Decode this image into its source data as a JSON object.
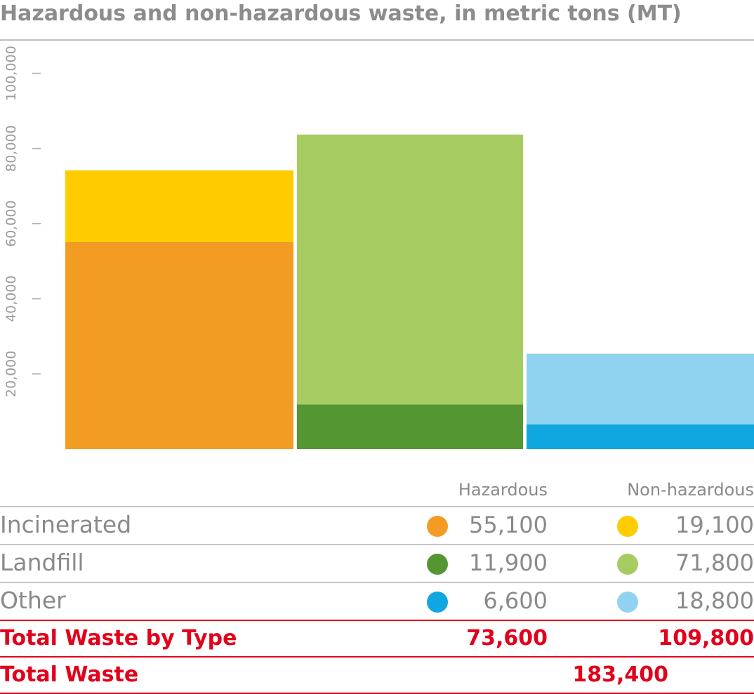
{
  "title": "Hazardous and non-hazardous waste, in metric tons (MT)",
  "chart_data": {
    "type": "bar",
    "stacked": true,
    "categories": [
      "Incinerated",
      "Landfill",
      "Other"
    ],
    "series": [
      {
        "name": "Hazardous",
        "values": [
          55100,
          11900,
          6600
        ],
        "colors": [
          "#f39c24",
          "#549632",
          "#10a7e0"
        ]
      },
      {
        "name": "Non-hazardous",
        "values": [
          19100,
          71800,
          18800
        ],
        "colors": [
          "#ffcc00",
          "#a6cc61",
          "#90d3f0"
        ]
      }
    ],
    "ylim": [
      0,
      100000
    ],
    "yticks": [
      20000,
      40000,
      60000,
      80000,
      100000
    ],
    "ytick_labels": [
      "20,000",
      "40,000",
      "60,000",
      "80,000",
      "100,000"
    ],
    "grid": false
  },
  "table": {
    "headers": {
      "hazardous": "Hazardous",
      "non_hazardous": "Non-hazardous"
    },
    "rows": [
      {
        "label": "Incinerated",
        "hazardous": "55,100",
        "non_hazardous": "19,100",
        "haz_color": "#f39c24",
        "non_color": "#ffcc00"
      },
      {
        "label": "Landfill",
        "hazardous": "11,900",
        "non_hazardous": "71,800",
        "haz_color": "#549632",
        "non_color": "#a6cc61"
      },
      {
        "label": "Other",
        "hazardous": "6,600",
        "non_hazardous": "18,800",
        "haz_color": "#10a7e0",
        "non_color": "#90d3f0"
      }
    ],
    "total_by_type": {
      "label": "Total Waste by Type",
      "hazardous": "73,600",
      "non_hazardous": "109,800"
    },
    "total": {
      "label": "Total Waste",
      "value": "183,400"
    }
  }
}
